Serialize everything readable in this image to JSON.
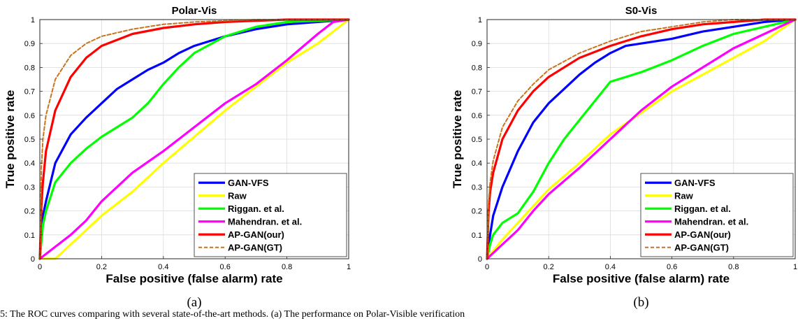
{
  "chart_data": [
    {
      "type": "line",
      "title": "Polar-Vis",
      "panel_label": "(a)",
      "xlabel": "False positive (false alarm) rate",
      "ylabel": "True positive  rate",
      "xlim": [
        0,
        1
      ],
      "ylim": [
        0,
        1
      ],
      "xticks": [
        "0",
        "0.2",
        "0.4",
        "0.6",
        "0.8",
        "1"
      ],
      "yticks": [
        "0",
        "0.1",
        "0.2",
        "0.3",
        "0.4",
        "0.5",
        "0.6",
        "0.7",
        "0.8",
        "0.9",
        "1"
      ],
      "grid": true,
      "legend_position": "lower-right",
      "series": [
        {
          "name": "GAN-VFS",
          "color": "#0000ff",
          "dash": "solid",
          "x": [
            0,
            0.01,
            0.02,
            0.05,
            0.1,
            0.15,
            0.2,
            0.25,
            0.3,
            0.35,
            0.4,
            0.45,
            0.5,
            0.6,
            0.7,
            0.8,
            0.9,
            1.0
          ],
          "y": [
            0,
            0.18,
            0.24,
            0.4,
            0.52,
            0.59,
            0.65,
            0.71,
            0.75,
            0.79,
            0.82,
            0.86,
            0.89,
            0.93,
            0.96,
            0.98,
            0.99,
            1.0
          ]
        },
        {
          "name": "Raw",
          "color": "#ffff00",
          "dash": "solid",
          "x": [
            0,
            0.05,
            0.1,
            0.15,
            0.2,
            0.3,
            0.4,
            0.5,
            0.6,
            0.7,
            0.8,
            0.9,
            0.95,
            1.0
          ],
          "y": [
            0,
            0.0,
            0.06,
            0.12,
            0.18,
            0.28,
            0.4,
            0.51,
            0.62,
            0.72,
            0.82,
            0.9,
            0.95,
            1.0
          ]
        },
        {
          "name": "Riggan. et al.",
          "color": "#00ff00",
          "dash": "solid",
          "x": [
            0,
            0.01,
            0.02,
            0.05,
            0.1,
            0.15,
            0.2,
            0.25,
            0.3,
            0.35,
            0.4,
            0.45,
            0.5,
            0.6,
            0.7,
            0.8,
            0.9,
            1.0
          ],
          "y": [
            0,
            0.14,
            0.2,
            0.32,
            0.4,
            0.46,
            0.51,
            0.55,
            0.59,
            0.65,
            0.73,
            0.8,
            0.86,
            0.93,
            0.97,
            0.99,
            0.995,
            1.0
          ]
        },
        {
          "name": "Mahendran. et al.",
          "color": "#ff00ff",
          "dash": "solid",
          "x": [
            0,
            0.05,
            0.1,
            0.15,
            0.2,
            0.3,
            0.4,
            0.5,
            0.6,
            0.7,
            0.8,
            0.9,
            0.95,
            1.0
          ],
          "y": [
            0,
            0.05,
            0.1,
            0.16,
            0.24,
            0.36,
            0.45,
            0.55,
            0.65,
            0.73,
            0.83,
            0.94,
            0.99,
            1.0
          ]
        },
        {
          "name": "AP-GAN(our)",
          "color": "#ff0000",
          "dash": "solid",
          "x": [
            0,
            0.005,
            0.01,
            0.02,
            0.05,
            0.1,
            0.15,
            0.2,
            0.3,
            0.4,
            0.5,
            0.6,
            0.7,
            0.8,
            0.9,
            1.0
          ],
          "y": [
            0,
            0.22,
            0.32,
            0.45,
            0.62,
            0.76,
            0.84,
            0.89,
            0.94,
            0.965,
            0.98,
            0.99,
            0.995,
            1.0,
            1.0,
            1.0
          ]
        },
        {
          "name": "AP-GAN(GT)",
          "color": "#c8741e",
          "dash": "dashed",
          "x": [
            0,
            0.005,
            0.01,
            0.02,
            0.05,
            0.1,
            0.15,
            0.2,
            0.3,
            0.4,
            0.5,
            0.6,
            0.7,
            0.8,
            0.9,
            1.0
          ],
          "y": [
            0,
            0.38,
            0.5,
            0.6,
            0.75,
            0.85,
            0.9,
            0.93,
            0.96,
            0.98,
            0.99,
            0.995,
            1.0,
            1.0,
            1.0,
            1.0
          ]
        }
      ]
    },
    {
      "type": "line",
      "title": "S0-Vis",
      "panel_label": "(b)",
      "xlabel": "False positive (false alarm) rate",
      "ylabel": "True positive  rate",
      "xlim": [
        0,
        1
      ],
      "ylim": [
        0,
        1
      ],
      "xticks": [
        "0",
        "0.2",
        "0.4",
        "0.6",
        "0.8",
        "1"
      ],
      "yticks": [
        "0",
        "0.1",
        "0.2",
        "0.3",
        "0.4",
        "0.5",
        "0.6",
        "0.7",
        "0.8",
        "0.9",
        "1"
      ],
      "grid": true,
      "legend_position": "lower-right",
      "series": [
        {
          "name": "GAN-VFS",
          "color": "#0000ff",
          "dash": "solid",
          "x": [
            0,
            0.01,
            0.02,
            0.05,
            0.1,
            0.15,
            0.2,
            0.25,
            0.3,
            0.35,
            0.4,
            0.45,
            0.5,
            0.6,
            0.7,
            0.8,
            0.9,
            1.0
          ],
          "y": [
            0,
            0.1,
            0.18,
            0.3,
            0.45,
            0.57,
            0.65,
            0.71,
            0.77,
            0.82,
            0.86,
            0.89,
            0.9,
            0.92,
            0.95,
            0.97,
            0.99,
            1.0
          ]
        },
        {
          "name": "Raw",
          "color": "#ffff00",
          "dash": "solid",
          "x": [
            0,
            0.05,
            0.1,
            0.15,
            0.2,
            0.3,
            0.4,
            0.5,
            0.6,
            0.7,
            0.8,
            0.9,
            1.0
          ],
          "y": [
            0,
            0.08,
            0.15,
            0.22,
            0.29,
            0.4,
            0.52,
            0.61,
            0.7,
            0.77,
            0.84,
            0.91,
            1.0
          ]
        },
        {
          "name": "Riggan. et al.",
          "color": "#00ff00",
          "dash": "solid",
          "x": [
            0,
            0.01,
            0.02,
            0.05,
            0.1,
            0.15,
            0.2,
            0.25,
            0.3,
            0.35,
            0.4,
            0.45,
            0.5,
            0.6,
            0.7,
            0.8,
            0.9,
            1.0
          ],
          "y": [
            0,
            0.06,
            0.1,
            0.15,
            0.19,
            0.28,
            0.4,
            0.5,
            0.58,
            0.66,
            0.74,
            0.76,
            0.78,
            0.83,
            0.89,
            0.94,
            0.97,
            1.0
          ]
        },
        {
          "name": "Mahendran. et al.",
          "color": "#ff00ff",
          "dash": "solid",
          "x": [
            0,
            0.05,
            0.1,
            0.15,
            0.2,
            0.3,
            0.4,
            0.5,
            0.6,
            0.7,
            0.8,
            0.9,
            1.0
          ],
          "y": [
            0,
            0.06,
            0.12,
            0.2,
            0.27,
            0.38,
            0.5,
            0.62,
            0.72,
            0.8,
            0.88,
            0.94,
            1.0
          ]
        },
        {
          "name": "AP-GAN(our)",
          "color": "#ff0000",
          "dash": "solid",
          "x": [
            0,
            0.005,
            0.01,
            0.02,
            0.05,
            0.1,
            0.15,
            0.2,
            0.3,
            0.4,
            0.5,
            0.6,
            0.7,
            0.8,
            0.9,
            1.0
          ],
          "y": [
            0,
            0.2,
            0.28,
            0.36,
            0.5,
            0.62,
            0.7,
            0.76,
            0.84,
            0.89,
            0.93,
            0.96,
            0.98,
            0.99,
            1.0,
            1.0
          ]
        },
        {
          "name": "AP-GAN(GT)",
          "color": "#c8741e",
          "dash": "dashed",
          "x": [
            0,
            0.005,
            0.01,
            0.02,
            0.05,
            0.1,
            0.15,
            0.2,
            0.3,
            0.4,
            0.5,
            0.6,
            0.7,
            0.8,
            0.9,
            1.0
          ],
          "y": [
            0,
            0.24,
            0.32,
            0.41,
            0.55,
            0.66,
            0.73,
            0.79,
            0.86,
            0.91,
            0.95,
            0.97,
            0.99,
            1.0,
            1.0,
            1.0
          ]
        }
      ]
    }
  ],
  "caption": "5: The ROC curves comparing with several state-of-the-art methods. (a) The performance on Polar-Visible verification"
}
